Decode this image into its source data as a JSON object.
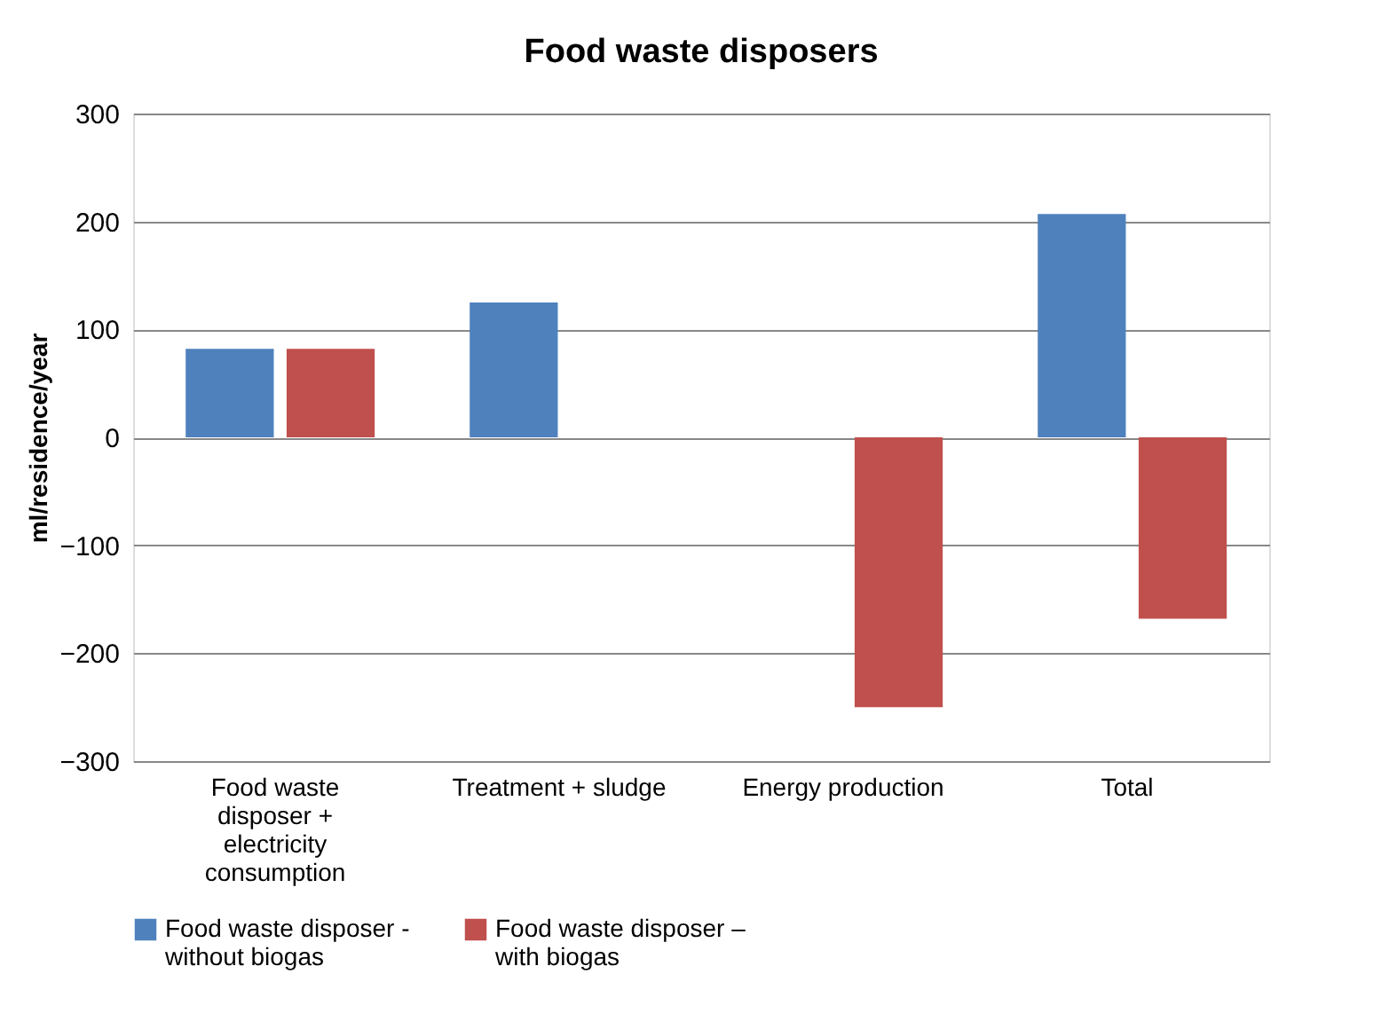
{
  "chart_data": {
    "type": "bar",
    "title": "Food waste disposers",
    "ylabel": "ml/residence/year",
    "categories": [
      "Food waste disposer + electricity consumption",
      "Treatment + sludge",
      "Energy production",
      "Total"
    ],
    "series": [
      {
        "name": "Food waste disposer - without biogas",
        "color": "#4f81bd",
        "values": [
          82,
          125,
          null,
          207
        ]
      },
      {
        "name": "Food waste disposer – with biogas",
        "color": "#c0504d",
        "values": [
          82,
          null,
          -250,
          -168
        ]
      }
    ],
    "ylim": [
      -300,
      300
    ],
    "yticks": [
      -300,
      -200,
      -100,
      0,
      100,
      200,
      300
    ],
    "grid": "y",
    "legend": "bottom"
  }
}
